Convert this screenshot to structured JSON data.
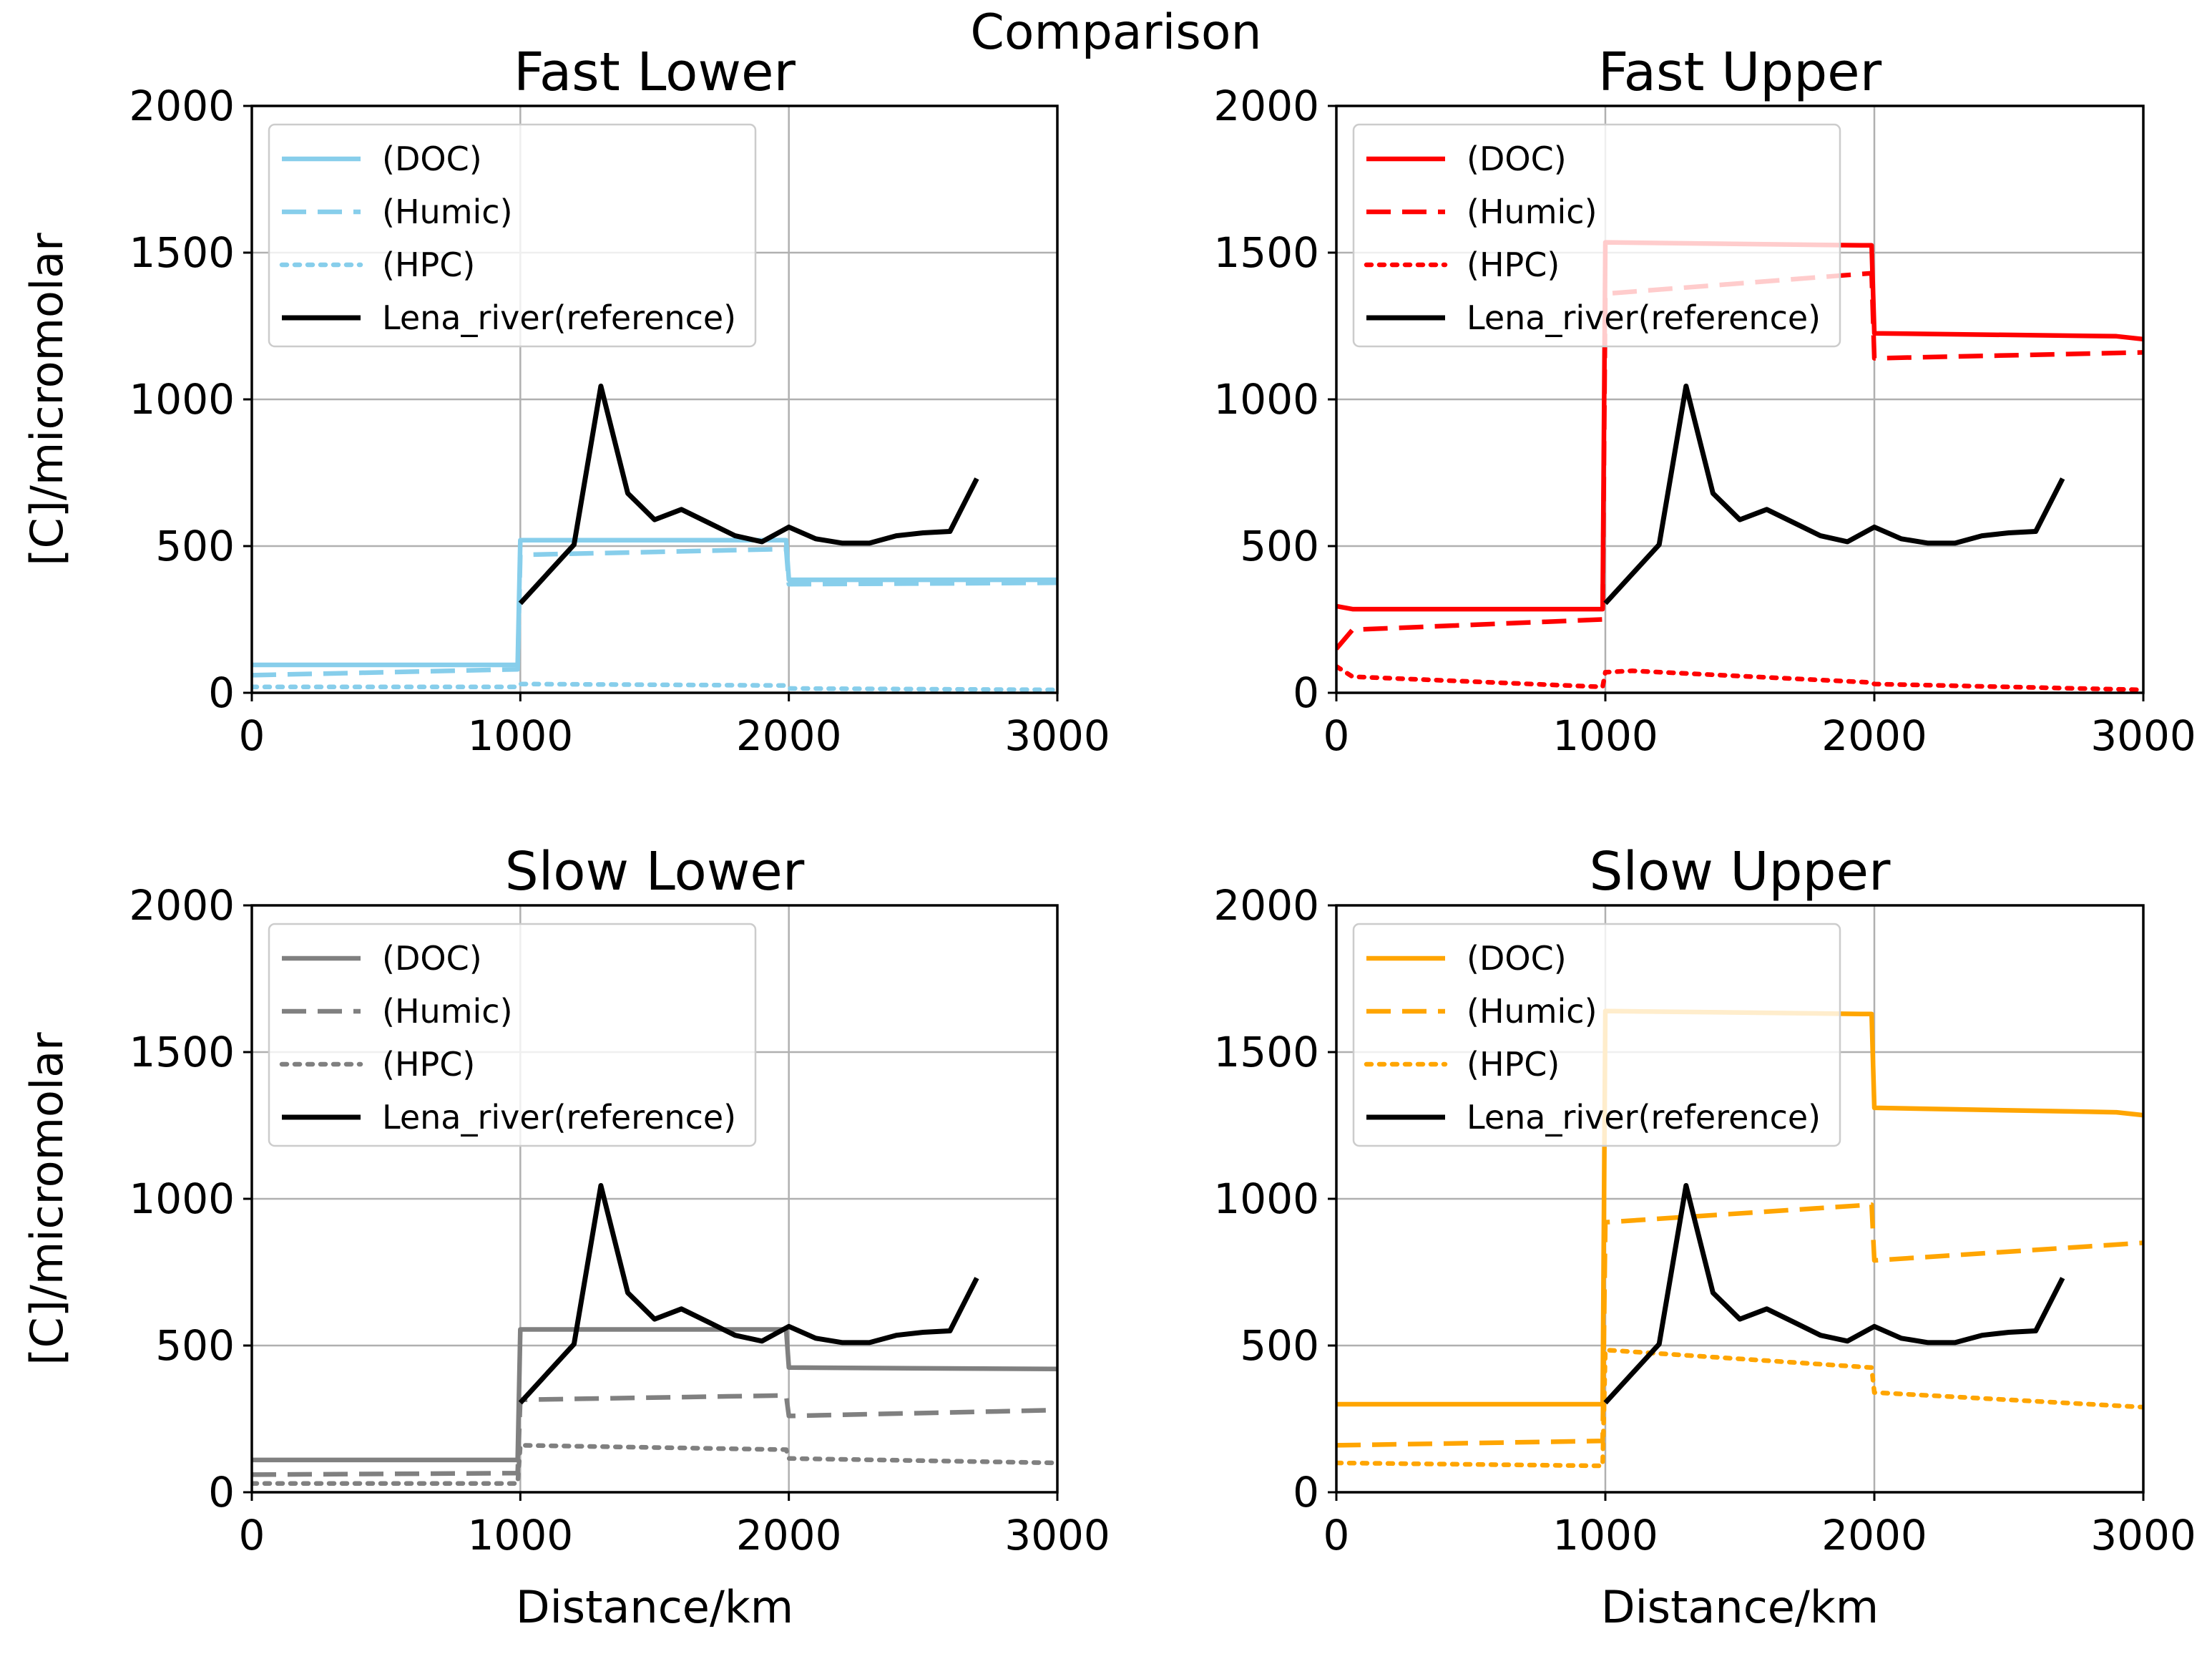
{
  "figure": {
    "suptitle": "Comparison"
  },
  "chart_data": [
    {
      "type": "line",
      "title": "Fast Lower",
      "xlabel": "",
      "ylabel": "[C]/micromolar",
      "xlim": [
        0,
        3000
      ],
      "ylim": [
        0,
        2000
      ],
      "xticks": [
        "0",
        "1000",
        "2000",
        "3000"
      ],
      "yticks": [
        "0",
        "500",
        "1000",
        "1500",
        "2000"
      ],
      "grid": true,
      "legend_position": "top-left",
      "series": [
        {
          "name": "(DOC)",
          "color": "#87ceeb",
          "style": "solid",
          "x": [
            0,
            990,
            1000,
            1990,
            2000,
            3000
          ],
          "y": [
            95,
            95,
            520,
            520,
            385,
            385
          ]
        },
        {
          "name": "(Humic)",
          "color": "#87ceeb",
          "style": "dashed",
          "x": [
            0,
            990,
            1000,
            1990,
            2000,
            3000
          ],
          "y": [
            60,
            80,
            470,
            490,
            370,
            375
          ]
        },
        {
          "name": "(HPC)",
          "color": "#87ceeb",
          "style": "dotted",
          "x": [
            0,
            990,
            1000,
            1990,
            2000,
            3000
          ],
          "y": [
            20,
            20,
            30,
            25,
            15,
            10
          ]
        },
        {
          "name": "Lena_river(reference)",
          "color": "#000000",
          "style": "solid",
          "x": [
            1000,
            1200,
            1300,
            1400,
            1500,
            1600,
            1700,
            1800,
            1900,
            2000,
            2100,
            2200,
            2300,
            2400,
            2500,
            2600,
            2700
          ],
          "y": [
            305,
            505,
            1045,
            680,
            590,
            625,
            580,
            535,
            515,
            565,
            525,
            510,
            510,
            535,
            545,
            550,
            730
          ]
        }
      ]
    },
    {
      "type": "line",
      "title": "Fast Upper",
      "xlabel": "",
      "ylabel": "",
      "xlim": [
        0,
        3000
      ],
      "ylim": [
        0,
        2000
      ],
      "xticks": [
        "0",
        "1000",
        "2000",
        "3000"
      ],
      "yticks": [
        "0",
        "500",
        "1000",
        "1500",
        "2000"
      ],
      "grid": true,
      "legend_position": "top-left",
      "series": [
        {
          "name": "(DOC)",
          "color": "#ff0000",
          "style": "solid",
          "x": [
            0,
            60,
            990,
            1000,
            1950,
            1990,
            2000,
            2900,
            3000
          ],
          "y": [
            295,
            285,
            285,
            1535,
            1525,
            1525,
            1225,
            1215,
            1205
          ]
        },
        {
          "name": "(Humic)",
          "color": "#ff0000",
          "style": "dashed",
          "x": [
            0,
            60,
            990,
            1000,
            1990,
            2000,
            3000
          ],
          "y": [
            150,
            215,
            250,
            1360,
            1430,
            1140,
            1160
          ]
        },
        {
          "name": "(HPC)",
          "color": "#ff0000",
          "style": "dotted",
          "x": [
            0,
            60,
            990,
            1000,
            1100,
            1990,
            2000,
            3000
          ],
          "y": [
            90,
            55,
            20,
            70,
            75,
            35,
            30,
            10
          ]
        },
        {
          "name": "Lena_river(reference)",
          "color": "#000000",
          "style": "solid",
          "x": [
            1000,
            1200,
            1300,
            1400,
            1500,
            1600,
            1700,
            1800,
            1900,
            2000,
            2100,
            2200,
            2300,
            2400,
            2500,
            2600,
            2700
          ],
          "y": [
            305,
            505,
            1045,
            680,
            590,
            625,
            580,
            535,
            515,
            565,
            525,
            510,
            510,
            535,
            545,
            550,
            730
          ]
        }
      ]
    },
    {
      "type": "line",
      "title": "Slow Lower",
      "xlabel": "Distance/km",
      "ylabel": "[C]/micromolar",
      "xlim": [
        0,
        3000
      ],
      "ylim": [
        0,
        2000
      ],
      "xticks": [
        "0",
        "1000",
        "2000",
        "3000"
      ],
      "yticks": [
        "0",
        "500",
        "1000",
        "1500",
        "2000"
      ],
      "grid": true,
      "legend_position": "top-left",
      "series": [
        {
          "name": "(DOC)",
          "color": "#808080",
          "style": "solid",
          "x": [
            0,
            990,
            1000,
            1990,
            2000,
            3000
          ],
          "y": [
            110,
            110,
            555,
            555,
            425,
            420
          ]
        },
        {
          "name": "(Humic)",
          "color": "#808080",
          "style": "dashed",
          "x": [
            0,
            990,
            1000,
            1990,
            2000,
            3000
          ],
          "y": [
            60,
            65,
            315,
            330,
            260,
            280
          ]
        },
        {
          "name": "(HPC)",
          "color": "#808080",
          "style": "dotted",
          "x": [
            0,
            990,
            1000,
            1990,
            2000,
            3000
          ],
          "y": [
            30,
            30,
            160,
            145,
            115,
            100
          ]
        },
        {
          "name": "Lena_river(reference)",
          "color": "#000000",
          "style": "solid",
          "x": [
            1000,
            1200,
            1300,
            1400,
            1500,
            1600,
            1700,
            1800,
            1900,
            2000,
            2100,
            2200,
            2300,
            2400,
            2500,
            2600,
            2700
          ],
          "y": [
            305,
            505,
            1045,
            680,
            590,
            625,
            580,
            535,
            515,
            565,
            525,
            510,
            510,
            535,
            545,
            550,
            730
          ]
        }
      ]
    },
    {
      "type": "line",
      "title": "Slow Upper",
      "xlabel": "Distance/km",
      "ylabel": "",
      "xlim": [
        0,
        3000
      ],
      "ylim": [
        0,
        2000
      ],
      "xticks": [
        "0",
        "1000",
        "2000",
        "3000"
      ],
      "yticks": [
        "0",
        "500",
        "1000",
        "1500",
        "2000"
      ],
      "grid": true,
      "legend_position": "top-left",
      "series": [
        {
          "name": "(DOC)",
          "color": "#ffa500",
          "style": "solid",
          "x": [
            0,
            990,
            1000,
            1950,
            1990,
            2000,
            2900,
            3000
          ],
          "y": [
            300,
            300,
            1640,
            1630,
            1630,
            1310,
            1295,
            1285
          ]
        },
        {
          "name": "(Humic)",
          "color": "#ffa500",
          "style": "dashed",
          "x": [
            0,
            990,
            1000,
            1990,
            2000,
            3000
          ],
          "y": [
            160,
            175,
            920,
            980,
            790,
            850
          ]
        },
        {
          "name": "(HPC)",
          "color": "#ffa500",
          "style": "dotted",
          "x": [
            0,
            990,
            1000,
            1990,
            2000,
            3000
          ],
          "y": [
            100,
            90,
            485,
            425,
            340,
            290
          ]
        },
        {
          "name": "Lena_river(reference)",
          "color": "#000000",
          "style": "solid",
          "x": [
            1000,
            1200,
            1300,
            1400,
            1500,
            1600,
            1700,
            1800,
            1900,
            2000,
            2100,
            2200,
            2300,
            2400,
            2500,
            2600,
            2700
          ],
          "y": [
            305,
            505,
            1045,
            680,
            590,
            625,
            580,
            535,
            515,
            565,
            525,
            510,
            510,
            535,
            545,
            550,
            730
          ]
        }
      ]
    }
  ]
}
